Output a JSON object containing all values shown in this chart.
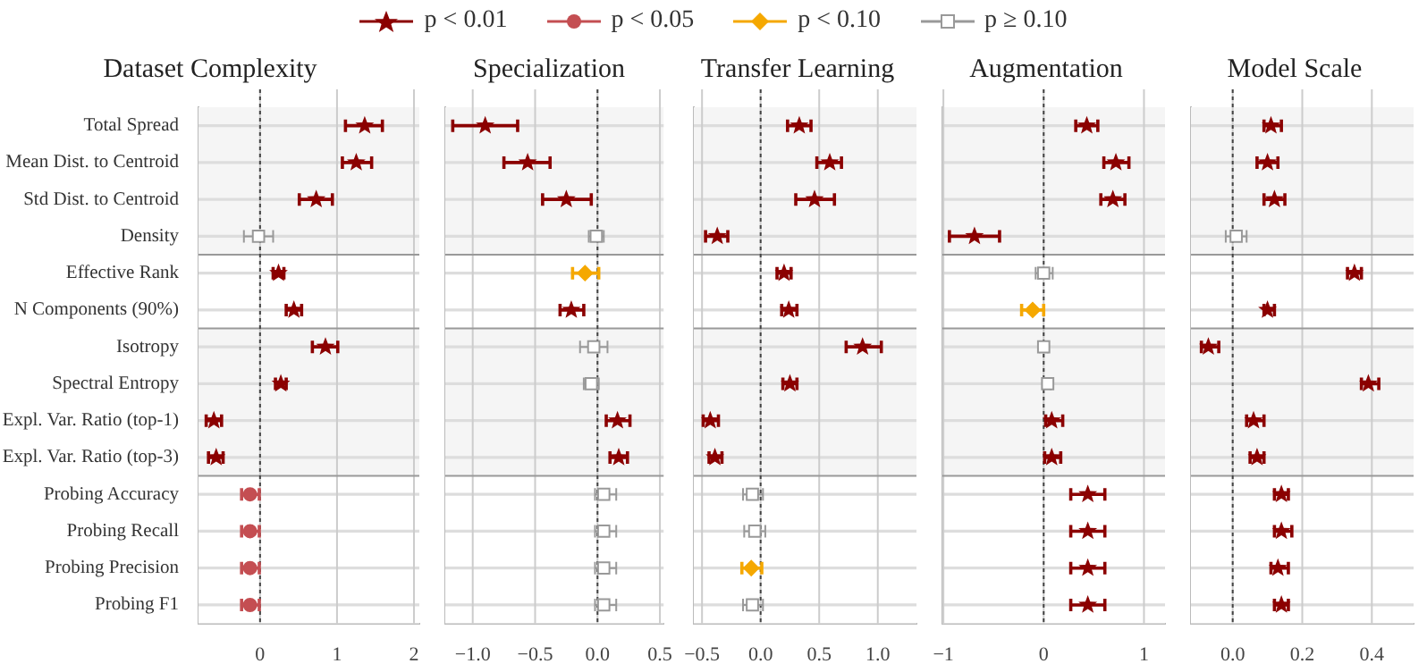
{
  "chart_data": [
    {
      "type": "scatter",
      "orientation": "horizontal",
      "title": "Dataset Complexity",
      "legend": "top",
      "grid": true,
      "categories": [
        "Total Spread",
        "Mean Dist. to Centroid",
        "Std Dist. to Centroid",
        "Density",
        "Effective Rank",
        "N Components (90%)",
        "Isotropy",
        "Spectral Entropy",
        "Expl. Var. Ratio (top-1)",
        "Expl. Var. Ratio (top-3)",
        "Probing Accuracy",
        "Probing Recall",
        "Probing Precision",
        "Probing F1"
      ],
      "xlim": [
        -0.8,
        2.07
      ],
      "xticks": [
        0,
        1,
        2
      ],
      "bands": [
        {
          "axis": "y",
          "from": "Total Spread",
          "to": "Density",
          "color": "#f5f5f5"
        },
        {
          "axis": "y",
          "from": "Effective Rank",
          "to": "N Components (90%)",
          "color": "#ffffff"
        },
        {
          "axis": "y",
          "from": "Isotropy",
          "to": "Expl. Var. Ratio (top-3)",
          "color": "#f5f5f5"
        },
        {
          "axis": "y",
          "from": "Probing Accuracy",
          "to": "Probing F1",
          "color": "#ffffff"
        }
      ],
      "ref_lines": [
        {
          "axis": "x",
          "value": 0,
          "color": "#444444",
          "line_style": "dotted"
        }
      ],
      "series": [
        {
          "name": "p < 0.01",
          "color": "#8b0000",
          "marker": "star",
          "values": [
            1.36,
            1.25,
            0.73,
            null,
            0.24,
            0.44,
            0.85,
            0.27,
            -0.6,
            -0.57,
            null,
            null,
            null,
            null
          ],
          "errors": [
            [
              1.11,
              1.59
            ],
            [
              1.07,
              1.45
            ],
            [
              0.51,
              0.94
            ],
            null,
            [
              0.17,
              0.31
            ],
            [
              0.34,
              0.54
            ],
            [
              0.68,
              1.01
            ],
            [
              0.2,
              0.34
            ],
            [
              -0.7,
              -0.5
            ],
            [
              -0.67,
              -0.48
            ],
            null,
            null,
            null,
            null
          ]
        },
        {
          "name": "p < 0.05",
          "color": "#c44e52",
          "marker": "circle",
          "values": [
            null,
            null,
            null,
            null,
            null,
            null,
            null,
            null,
            null,
            null,
            -0.13,
            -0.13,
            -0.13,
            -0.13
          ],
          "errors": [
            null,
            null,
            null,
            null,
            null,
            null,
            null,
            null,
            null,
            null,
            [
              -0.24,
              -0.01
            ],
            [
              -0.24,
              -0.01
            ],
            [
              -0.24,
              -0.01
            ],
            [
              -0.24,
              -0.01
            ]
          ]
        },
        {
          "name": "p < 0.10",
          "color": "#f5a800",
          "marker": "diamond",
          "values": [
            null,
            null,
            null,
            null,
            null,
            null,
            null,
            null,
            null,
            null,
            null,
            null,
            null,
            null
          ]
        },
        {
          "name": "p ≥ 0.10",
          "color": "#999999",
          "marker": "square",
          "values": [
            null,
            null,
            null,
            -0.02,
            null,
            null,
            null,
            null,
            null,
            null,
            null,
            null,
            null,
            null
          ],
          "errors": [
            null,
            null,
            null,
            [
              -0.21,
              0.17
            ],
            null,
            null,
            null,
            null,
            null,
            null,
            null,
            null,
            null,
            null
          ]
        }
      ]
    },
    {
      "type": "scatter",
      "orientation": "horizontal",
      "title": "Specialization",
      "grid": true,
      "tick_labels": "x",
      "categories": [
        "Total Spread",
        "Mean Dist. to Centroid",
        "Std Dist. to Centroid",
        "Density",
        "Effective Rank",
        "N Components (90%)",
        "Isotropy",
        "Spectral Entropy",
        "Expl. Var. Ratio (top-1)",
        "Expl. Var. Ratio (top-3)",
        "Probing Accuracy",
        "Probing Recall",
        "Probing Precision",
        "Probing F1"
      ],
      "xlim": [
        -1.22,
        0.53
      ],
      "xticks": [
        {
          "value": -1,
          "label": "−1.0"
        },
        {
          "value": -0.5,
          "label": "−0.5"
        },
        {
          "value": 0,
          "label": "0.0"
        },
        0.5
      ],
      "bands": [
        {
          "axis": "y",
          "from": "Total Spread",
          "to": "Density",
          "color": "#f5f5f5"
        },
        {
          "axis": "y",
          "from": "Effective Rank",
          "to": "N Components (90%)",
          "color": "#ffffff"
        },
        {
          "axis": "y",
          "from": "Isotropy",
          "to": "Expl. Var. Ratio (top-3)",
          "color": "#f5f5f5"
        },
        {
          "axis": "y",
          "from": "Probing Accuracy",
          "to": "Probing F1",
          "color": "#ffffff"
        }
      ],
      "ref_lines": [
        {
          "axis": "x",
          "value": 0,
          "color": "#444444",
          "line_style": "dotted"
        }
      ],
      "series": [
        {
          "color": "#8b0000",
          "marker": "star",
          "values": [
            -0.9,
            -0.56,
            -0.25,
            null,
            null,
            -0.21,
            null,
            null,
            0.16,
            0.17,
            null,
            null,
            null,
            null
          ],
          "errors": [
            [
              -1.16,
              -0.64
            ],
            [
              -0.75,
              -0.38
            ],
            [
              -0.44,
              -0.05
            ],
            null,
            null,
            [
              -0.3,
              -0.11
            ],
            null,
            null,
            [
              0.07,
              0.26
            ],
            [
              0.1,
              0.24
            ],
            null,
            null,
            null,
            null
          ]
        },
        {
          "color": "#f5a800",
          "marker": "diamond",
          "values": [
            null,
            null,
            null,
            null,
            -0.1,
            null,
            null,
            null,
            null,
            null,
            null,
            null,
            null,
            null
          ],
          "errors": [
            null,
            null,
            null,
            null,
            [
              -0.2,
              0.01
            ],
            null,
            null,
            null,
            null,
            null,
            null,
            null,
            null,
            null
          ]
        },
        {
          "color": "#999999",
          "marker": "square",
          "values": [
            null,
            null,
            null,
            -0.01,
            null,
            null,
            -0.03,
            -0.05,
            null,
            null,
            0.05,
            0.05,
            0.05,
            0.05
          ],
          "errors": [
            null,
            null,
            null,
            [
              -0.07,
              0.05
            ],
            null,
            null,
            [
              -0.14,
              0.08
            ],
            [
              -0.11,
              0.01
            ],
            null,
            null,
            [
              -0.02,
              0.15
            ],
            [
              -0.02,
              0.15
            ],
            [
              -0.02,
              0.15
            ],
            [
              -0.02,
              0.15
            ]
          ]
        }
      ]
    },
    {
      "type": "scatter",
      "orientation": "horizontal",
      "title": "Transfer Learning",
      "grid": true,
      "tick_labels": "x",
      "categories": [
        "Total Spread",
        "Mean Dist. to Centroid",
        "Std Dist. to Centroid",
        "Density",
        "Effective Rank",
        "N Components (90%)",
        "Isotropy",
        "Spectral Entropy",
        "Expl. Var. Ratio (top-1)",
        "Expl. Var. Ratio (top-3)",
        "Probing Accuracy",
        "Probing Recall",
        "Probing Precision",
        "Probing F1"
      ],
      "xlim": [
        -0.57,
        1.33
      ],
      "xticks": [
        {
          "value": -0.5,
          "label": "−0.5"
        },
        {
          "value": 0,
          "label": "0.0"
        },
        0.5,
        {
          "value": 1,
          "label": "1.0"
        }
      ],
      "bands": [
        {
          "axis": "y",
          "from": "Total Spread",
          "to": "Density",
          "color": "#f5f5f5"
        },
        {
          "axis": "y",
          "from": "Effective Rank",
          "to": "N Components (90%)",
          "color": "#ffffff"
        },
        {
          "axis": "y",
          "from": "Isotropy",
          "to": "Expl. Var. Ratio (top-3)",
          "color": "#f5f5f5"
        },
        {
          "axis": "y",
          "from": "Probing Accuracy",
          "to": "Probing F1",
          "color": "#ffffff"
        }
      ],
      "ref_lines": [
        {
          "axis": "x",
          "value": 0,
          "color": "#444444",
          "line_style": "dotted"
        }
      ],
      "series": [
        {
          "color": "#8b0000",
          "marker": "star",
          "values": [
            0.33,
            0.59,
            0.46,
            -0.37,
            0.2,
            0.24,
            0.87,
            0.25,
            -0.43,
            -0.39,
            null,
            null,
            null,
            null
          ],
          "errors": [
            [
              0.23,
              0.43
            ],
            [
              0.48,
              0.69
            ],
            [
              0.3,
              0.63
            ],
            [
              -0.47,
              -0.28
            ],
            [
              0.14,
              0.26
            ],
            [
              0.18,
              0.31
            ],
            [
              0.73,
              1.03
            ],
            [
              0.19,
              0.31
            ],
            [
              -0.49,
              -0.36
            ],
            [
              -0.44,
              -0.33
            ],
            null,
            null,
            null,
            null
          ]
        },
        {
          "color": "#f5a800",
          "marker": "diamond",
          "values": [
            null,
            null,
            null,
            null,
            null,
            null,
            null,
            null,
            null,
            null,
            null,
            null,
            -0.08,
            null
          ],
          "errors": [
            null,
            null,
            null,
            null,
            null,
            null,
            null,
            null,
            null,
            null,
            null,
            null,
            [
              -0.16,
              0.01
            ],
            null
          ]
        },
        {
          "color": "#999999",
          "marker": "square",
          "values": [
            null,
            null,
            null,
            null,
            null,
            null,
            null,
            null,
            null,
            null,
            -0.07,
            -0.05,
            null,
            -0.07
          ],
          "errors": [
            null,
            null,
            null,
            null,
            null,
            null,
            null,
            null,
            null,
            null,
            [
              -0.15,
              0.02
            ],
            [
              -0.14,
              0.04
            ],
            null,
            [
              -0.15,
              0.02
            ]
          ]
        }
      ]
    },
    {
      "type": "scatter",
      "orientation": "horizontal",
      "title": "Augmentation",
      "grid": true,
      "tick_labels": "x",
      "categories": [
        "Total Spread",
        "Mean Dist. to Centroid",
        "Std Dist. to Centroid",
        "Density",
        "Effective Rank",
        "N Components (90%)",
        "Isotropy",
        "Spectral Entropy",
        "Expl. Var. Ratio (top-1)",
        "Expl. Var. Ratio (top-3)",
        "Probing Accuracy",
        "Probing Recall",
        "Probing Precision",
        "Probing F1"
      ],
      "xlim": [
        -1.01,
        1.21
      ],
      "xticks": [
        {
          "value": -1,
          "label": "−1"
        },
        0,
        1
      ],
      "bands": [
        {
          "axis": "y",
          "from": "Total Spread",
          "to": "Density",
          "color": "#f5f5f5"
        },
        {
          "axis": "y",
          "from": "Effective Rank",
          "to": "N Components (90%)",
          "color": "#ffffff"
        },
        {
          "axis": "y",
          "from": "Isotropy",
          "to": "Expl. Var. Ratio (top-3)",
          "color": "#f5f5f5"
        },
        {
          "axis": "y",
          "from": "Probing Accuracy",
          "to": "Probing F1",
          "color": "#ffffff"
        }
      ],
      "ref_lines": [
        {
          "axis": "x",
          "value": 0,
          "color": "#444444",
          "line_style": "dotted"
        }
      ],
      "series": [
        {
          "color": "#8b0000",
          "marker": "star",
          "values": [
            0.43,
            0.72,
            0.69,
            -0.69,
            null,
            null,
            null,
            null,
            0.08,
            0.08,
            0.44,
            0.44,
            0.44,
            0.44
          ],
          "errors": [
            [
              0.32,
              0.54
            ],
            [
              0.6,
              0.85
            ],
            [
              0.57,
              0.81
            ],
            [
              -0.94,
              -0.44
            ],
            null,
            null,
            null,
            null,
            [
              0.02,
              0.19
            ],
            [
              0.01,
              0.17
            ],
            [
              0.27,
              0.61
            ],
            [
              0.27,
              0.61
            ],
            [
              0.27,
              0.61
            ],
            [
              0.27,
              0.61
            ]
          ]
        },
        {
          "color": "#f5a800",
          "marker": "diamond",
          "values": [
            null,
            null,
            null,
            null,
            null,
            -0.11,
            null,
            null,
            null,
            null,
            null,
            null,
            null,
            null
          ],
          "errors": [
            null,
            null,
            null,
            null,
            null,
            [
              -0.22,
              0.0
            ],
            null,
            null,
            null,
            null,
            null,
            null,
            null,
            null
          ]
        },
        {
          "color": "#999999",
          "marker": "square",
          "values": [
            null,
            null,
            null,
            null,
            0.0,
            null,
            0.0,
            0.04,
            null,
            null,
            null,
            null,
            null,
            null
          ],
          "errors": [
            null,
            null,
            null,
            null,
            [
              -0.08,
              0.09
            ],
            null,
            [
              -0.04,
              0.04
            ],
            [
              0.0,
              0.07
            ],
            null,
            null,
            null,
            null,
            null,
            null
          ]
        }
      ]
    },
    {
      "type": "scatter",
      "orientation": "horizontal",
      "title": "Model Scale",
      "grid": true,
      "tick_labels": "x",
      "categories": [
        "Total Spread",
        "Mean Dist. to Centroid",
        "Std Dist. to Centroid",
        "Density",
        "Effective Rank",
        "N Components (90%)",
        "Isotropy",
        "Spectral Entropy",
        "Expl. Var. Ratio (top-1)",
        "Expl. Var. Ratio (top-3)",
        "Probing Accuracy",
        "Probing Recall",
        "Probing Precision",
        "Probing F1"
      ],
      "xlim": [
        -0.12,
        0.52
      ],
      "xticks": [
        {
          "value": 0,
          "label": "0.0"
        },
        0.2,
        0.4
      ],
      "bands": [
        {
          "axis": "y",
          "from": "Total Spread",
          "to": "Density",
          "color": "#f5f5f5"
        },
        {
          "axis": "y",
          "from": "Effective Rank",
          "to": "N Components (90%)",
          "color": "#ffffff"
        },
        {
          "axis": "y",
          "from": "Isotropy",
          "to": "Expl. Var. Ratio (top-3)",
          "color": "#f5f5f5"
        },
        {
          "axis": "y",
          "from": "Probing Accuracy",
          "to": "Probing F1",
          "color": "#ffffff"
        }
      ],
      "ref_lines": [
        {
          "axis": "x",
          "value": 0,
          "color": "#444444",
          "line_style": "dotted"
        }
      ],
      "series": [
        {
          "color": "#8b0000",
          "marker": "star",
          "values": [
            0.11,
            0.1,
            0.12,
            null,
            0.35,
            0.1,
            -0.07,
            0.39,
            0.06,
            0.07,
            0.14,
            0.14,
            0.13,
            0.14
          ],
          "errors": [
            [
              0.09,
              0.14
            ],
            [
              0.07,
              0.13
            ],
            [
              0.09,
              0.15
            ],
            null,
            [
              0.33,
              0.37
            ],
            [
              0.09,
              0.12
            ],
            [
              -0.09,
              -0.04
            ],
            [
              0.37,
              0.42
            ],
            [
              0.04,
              0.09
            ],
            [
              0.05,
              0.09
            ],
            [
              0.12,
              0.16
            ],
            [
              0.12,
              0.17
            ],
            [
              0.11,
              0.16
            ],
            [
              0.12,
              0.16
            ]
          ]
        },
        {
          "color": "#999999",
          "marker": "square",
          "values": [
            null,
            null,
            null,
            0.01,
            null,
            null,
            null,
            null,
            null,
            null,
            null,
            null,
            null,
            null
          ],
          "errors": [
            null,
            null,
            null,
            [
              -0.02,
              0.04
            ],
            null,
            null,
            null,
            null,
            null,
            null,
            null,
            null,
            null,
            null
          ]
        }
      ]
    }
  ]
}
